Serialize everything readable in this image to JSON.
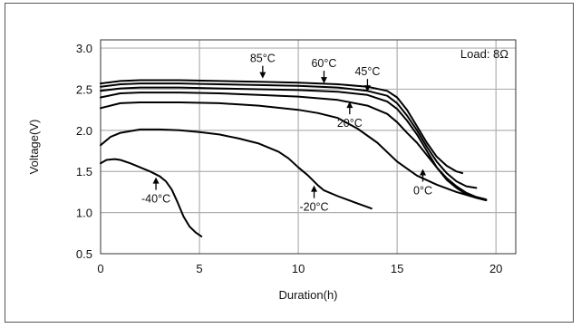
{
  "chart_data": {
    "type": "line",
    "title": "",
    "xlabel": "Duration(h)",
    "ylabel": "Voltage(V)",
    "xlim": [
      0,
      21
    ],
    "ylim": [
      0.5,
      3.1
    ],
    "x_ticks": [
      "0",
      "5",
      "10",
      "15",
      "20"
    ],
    "y_ticks": [
      "0.5",
      "1.0",
      "1.5",
      "2.0",
      "2.5",
      "3.0"
    ],
    "grid": true,
    "legend_text": "Load: 8Ω",
    "legend_position": "top-right",
    "line_color": "#000000",
    "grid_color": "#b0b0b0",
    "series": [
      {
        "name": "85°C",
        "x": [
          0,
          1,
          2,
          4,
          6,
          8,
          10,
          12,
          13.5,
          14.5,
          15,
          15.5,
          16,
          16.5,
          17,
          17.5,
          18,
          18.3
        ],
        "y": [
          2.57,
          2.6,
          2.61,
          2.61,
          2.6,
          2.59,
          2.58,
          2.56,
          2.53,
          2.48,
          2.4,
          2.25,
          2.05,
          1.85,
          1.68,
          1.57,
          1.5,
          1.48
        ]
      },
      {
        "name": "60°C",
        "x": [
          0,
          1,
          2,
          4,
          6,
          8,
          10,
          12,
          13.5,
          14.5,
          15,
          15.5,
          16,
          16.5,
          17,
          17.5,
          18,
          18.5,
          19
        ],
        "y": [
          2.53,
          2.56,
          2.57,
          2.57,
          2.56,
          2.55,
          2.54,
          2.52,
          2.48,
          2.42,
          2.33,
          2.18,
          2.0,
          1.8,
          1.62,
          1.48,
          1.38,
          1.32,
          1.3
        ]
      },
      {
        "name": "45°C",
        "x": [
          0,
          1,
          2,
          4,
          6,
          8,
          10,
          12,
          13.5,
          14.5,
          15,
          15.5,
          16,
          16.5,
          17,
          17.5,
          18,
          18.5,
          19,
          19.5
        ],
        "y": [
          2.48,
          2.51,
          2.52,
          2.52,
          2.51,
          2.5,
          2.49,
          2.47,
          2.43,
          2.35,
          2.26,
          2.12,
          1.95,
          1.75,
          1.55,
          1.4,
          1.3,
          1.22,
          1.18,
          1.15
        ]
      },
      {
        "name": "20°C",
        "x": [
          0,
          1,
          2,
          4,
          6,
          8,
          10,
          12,
          13.5,
          14.5,
          15,
          15.5,
          16,
          16.5,
          17,
          17.5,
          18,
          18.5,
          19,
          19.5
        ],
        "y": [
          2.4,
          2.45,
          2.46,
          2.46,
          2.45,
          2.43,
          2.41,
          2.37,
          2.3,
          2.2,
          2.1,
          1.97,
          1.85,
          1.7,
          1.55,
          1.42,
          1.32,
          1.24,
          1.19,
          1.16
        ]
      },
      {
        "name": "0°C",
        "x": [
          0,
          1,
          2,
          4,
          6,
          8,
          10,
          11,
          12,
          13,
          14,
          15,
          16,
          17,
          18,
          19,
          19.5
        ],
        "y": [
          2.27,
          2.33,
          2.34,
          2.34,
          2.33,
          2.3,
          2.25,
          2.21,
          2.15,
          2.02,
          1.85,
          1.62,
          1.45,
          1.34,
          1.25,
          1.18,
          1.15
        ]
      },
      {
        "name": "-20°C",
        "x": [
          0,
          0.5,
          1,
          2,
          3,
          4,
          5,
          6,
          7,
          8,
          9,
          9.5,
          10,
          10.5,
          11,
          11.3,
          12,
          13,
          13.7
        ],
        "y": [
          1.82,
          1.92,
          1.97,
          2.01,
          2.01,
          2.0,
          1.98,
          1.95,
          1.9,
          1.84,
          1.74,
          1.66,
          1.55,
          1.45,
          1.33,
          1.27,
          1.2,
          1.11,
          1.05
        ]
      },
      {
        "name": "-40°C",
        "x": [
          0,
          0.3,
          0.7,
          1,
          1.5,
          2,
          2.5,
          3,
          3.3,
          3.6,
          3.9,
          4.2,
          4.5,
          4.8,
          5.1
        ],
        "y": [
          1.6,
          1.64,
          1.65,
          1.64,
          1.6,
          1.55,
          1.5,
          1.44,
          1.38,
          1.28,
          1.12,
          0.95,
          0.83,
          0.76,
          0.71
        ]
      }
    ],
    "annotations": [
      {
        "label": "85°C",
        "x": 8.2,
        "y": 2.63
      },
      {
        "label": "60°C",
        "x": 11.3,
        "y": 2.57
      },
      {
        "label": "45°C",
        "x": 13.5,
        "y": 2.47
      },
      {
        "label": "20°C",
        "x": 12.6,
        "y": 2.35
      },
      {
        "label": "0°C",
        "x": 16.3,
        "y": 1.53
      },
      {
        "label": "-20°C",
        "x": 10.8,
        "y": 1.33
      },
      {
        "label": "-40°C",
        "x": 2.8,
        "y": 1.43
      }
    ]
  }
}
